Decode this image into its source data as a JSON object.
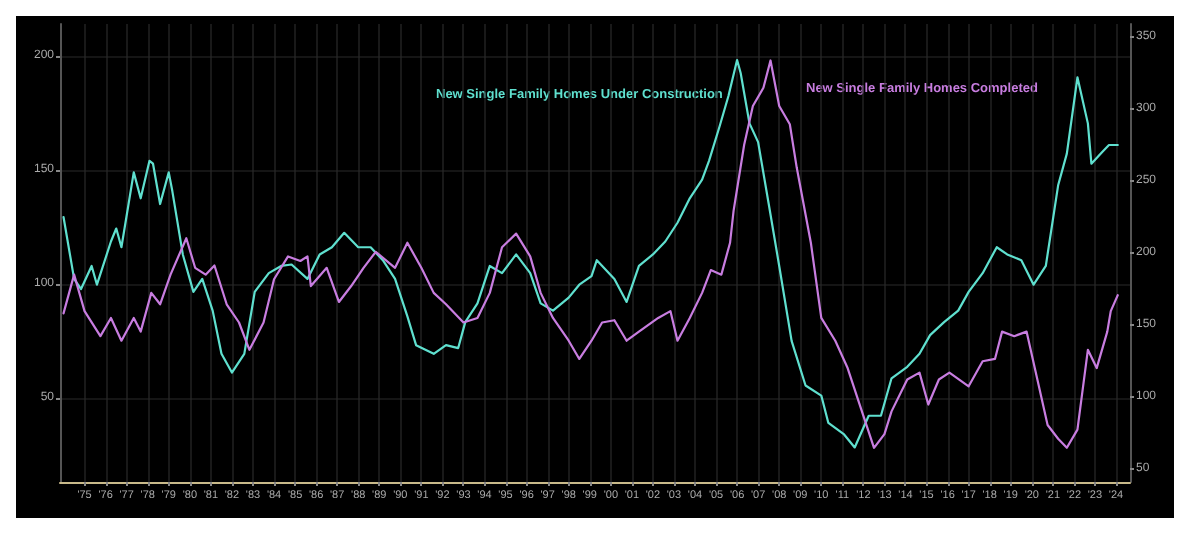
{
  "chart_data": {
    "type": "line",
    "xlim": [
      "1974-05",
      "2025-03"
    ],
    "xticks": [
      {
        "value": "1975-07",
        "label": "'75"
      },
      {
        "value": "1976-07",
        "label": "'76"
      },
      {
        "value": "1977-07",
        "label": "'77"
      },
      {
        "value": "1978-07",
        "label": "'78"
      },
      {
        "value": "1979-07",
        "label": "'79"
      },
      {
        "value": "1980-07",
        "label": "'80"
      },
      {
        "value": "1981-07",
        "label": "'81"
      },
      {
        "value": "1982-07",
        "label": "'82"
      },
      {
        "value": "1983-07",
        "label": "'83"
      },
      {
        "value": "1984-07",
        "label": "'84"
      },
      {
        "value": "1985-07",
        "label": "'85"
      },
      {
        "value": "1986-07",
        "label": "'86"
      },
      {
        "value": "1987-07",
        "label": "'87"
      },
      {
        "value": "1988-07",
        "label": "'88"
      },
      {
        "value": "1989-07",
        "label": "'89"
      },
      {
        "value": "1990-07",
        "label": "'90"
      },
      {
        "value": "1991-07",
        "label": "'91"
      },
      {
        "value": "1992-07",
        "label": "'92"
      },
      {
        "value": "1993-07",
        "label": "'93"
      },
      {
        "value": "1994-07",
        "label": "'94"
      },
      {
        "value": "1995-07",
        "label": "'95"
      },
      {
        "value": "1996-07",
        "label": "'96"
      },
      {
        "value": "1997-07",
        "label": "'97"
      },
      {
        "value": "1998-07",
        "label": "'98"
      },
      {
        "value": "1999-07",
        "label": "'99"
      },
      {
        "value": "2000-07",
        "label": "'00"
      },
      {
        "value": "2001-07",
        "label": "'01"
      },
      {
        "value": "2002-07",
        "label": "'02"
      },
      {
        "value": "2003-07",
        "label": "'03"
      },
      {
        "value": "2004-07",
        "label": "'04"
      },
      {
        "value": "2005-07",
        "label": "'05"
      },
      {
        "value": "2006-07",
        "label": "'06"
      },
      {
        "value": "2007-07",
        "label": "'07"
      },
      {
        "value": "2008-07",
        "label": "'08"
      },
      {
        "value": "2009-07",
        "label": "'09"
      },
      {
        "value": "2010-07",
        "label": "'10"
      },
      {
        "value": "2011-07",
        "label": "'11"
      },
      {
        "value": "2012-07",
        "label": "'12"
      },
      {
        "value": "2013-07",
        "label": "'13"
      },
      {
        "value": "2014-07",
        "label": "'14"
      },
      {
        "value": "2015-07",
        "label": "'15"
      },
      {
        "value": "2016-07",
        "label": "'16"
      },
      {
        "value": "2017-07",
        "label": "'17"
      },
      {
        "value": "2018-07",
        "label": "'18"
      },
      {
        "value": "2019-07",
        "label": "'19"
      },
      {
        "value": "2020-07",
        "label": "'20"
      },
      {
        "value": "2021-07",
        "label": "'21"
      },
      {
        "value": "2022-07",
        "label": "'22"
      },
      {
        "value": "2023-07",
        "label": "'23"
      },
      {
        "value": "2024-07",
        "label": "'24"
      }
    ],
    "ylim": [
      13,
      214
    ],
    "yticks": [
      50,
      100,
      150,
      200
    ],
    "y2lim": [
      41,
      359
    ],
    "y2ticks": [
      50,
      100,
      150,
      200,
      250,
      300,
      350
    ],
    "grid": true,
    "legend": false,
    "marker": "none",
    "line_style": "solid",
    "series": [
      {
        "name": "New Single Family Homes Under Construction",
        "color": "#5fe0cf",
        "axis": "y2",
        "x": [
          "1974-07",
          "1975-01",
          "1975-05",
          "1975-11",
          "1976-02",
          "1976-10",
          "1977-01",
          "1977-04",
          "1977-11",
          "1978-03",
          "1978-08",
          "1978-10",
          "1979-02",
          "1979-07",
          "1979-09",
          "1980-03",
          "1980-09",
          "1981-02",
          "1981-08",
          "1982-01",
          "1982-07",
          "1983-02",
          "1983-08",
          "1984-04",
          "1984-11",
          "1985-05",
          "1986-02",
          "1986-09",
          "1987-04",
          "1987-11",
          "1988-07",
          "1989-02",
          "1989-09",
          "1990-04",
          "1990-11",
          "1991-04",
          "1992-02",
          "1992-09",
          "1993-04",
          "1993-08",
          "1994-03",
          "1994-10",
          "1995-05",
          "1996-01",
          "1996-09",
          "1997-03",
          "1997-10",
          "1998-07",
          "1999-01",
          "1999-08",
          "1999-11",
          "2000-09",
          "2001-04",
          "2001-11",
          "2002-07",
          "2003-02",
          "2003-09",
          "2004-04",
          "2004-11",
          "2005-03",
          "2005-09",
          "2006-02",
          "2006-07",
          "2006-09",
          "2007-02",
          "2007-07",
          "2008-01",
          "2008-07",
          "2009-02",
          "2009-10",
          "2010-07",
          "2010-11",
          "2011-08",
          "2012-02",
          "2012-10",
          "2013-05",
          "2013-11",
          "2014-08",
          "2015-03",
          "2015-09",
          "2016-05",
          "2017-01",
          "2017-07",
          "2018-03",
          "2018-11",
          "2019-05",
          "2020-01",
          "2020-08",
          "2021-03",
          "2021-10",
          "2022-03",
          "2022-09",
          "2023-03",
          "2023-05",
          "2023-11",
          "2024-03",
          "2024-08"
        ],
        "values": [
          225,
          182,
          175,
          191,
          178,
          208,
          217,
          204,
          256,
          238,
          264,
          262,
          234,
          256,
          243,
          199,
          173,
          182,
          160,
          130,
          117,
          130,
          173,
          186,
          191,
          192,
          182,
          199,
          204,
          214,
          204,
          204,
          195,
          182,
          156,
          136,
          130,
          136,
          134,
          152,
          165,
          191,
          186,
          199,
          186,
          165,
          160,
          169,
          178,
          184,
          195,
          182,
          166,
          191,
          199,
          208,
          221,
          238,
          251,
          264,
          288,
          309,
          334,
          325,
          290,
          277,
          234,
          191,
          139,
          108,
          101,
          82,
          74,
          65,
          87,
          87,
          113,
          121,
          130,
          143,
          152,
          160,
          173,
          186,
          204,
          199,
          195,
          178,
          191,
          247,
          269,
          322,
          290,
          262,
          270,
          275,
          275
        ]
      },
      {
        "name": "New Single Family Homes Completed",
        "color": "#c87de0",
        "x": [
          "1974-07",
          "1975-01",
          "1975-07",
          "1976-04",
          "1976-10",
          "1977-04",
          "1977-11",
          "1978-03",
          "1978-09",
          "1979-02",
          "1979-08",
          "1980-05",
          "1980-10",
          "1981-04",
          "1981-09",
          "1982-04",
          "1982-11",
          "1983-05",
          "1984-01",
          "1984-07",
          "1985-03",
          "1985-10",
          "1986-02",
          "1986-04",
          "1987-01",
          "1987-08",
          "1988-03",
          "1988-10",
          "1989-05",
          "1990-04",
          "1990-11",
          "1991-07",
          "1992-02",
          "1992-09",
          "1993-07",
          "1994-03",
          "1994-10",
          "1995-05",
          "1996-01",
          "1996-09",
          "1997-03",
          "1997-10",
          "1998-07",
          "1999-01",
          "1999-08",
          "2000-02",
          "2000-09",
          "2001-04",
          "2001-11",
          "2002-10",
          "2003-05",
          "2003-09",
          "2004-04",
          "2004-11",
          "2005-04",
          "2005-10",
          "2006-03",
          "2006-05",
          "2006-11",
          "2007-04",
          "2007-10",
          "2008-02",
          "2008-07",
          "2009-01",
          "2009-05",
          "2010-01",
          "2010-07",
          "2011-03",
          "2011-10",
          "2012-07",
          "2013-01",
          "2013-07",
          "2013-11",
          "2014-08",
          "2015-03",
          "2015-08",
          "2016-02",
          "2016-08",
          "2017-07",
          "2018-03",
          "2018-10",
          "2019-02",
          "2019-09",
          "2020-04",
          "2020-11",
          "2021-04",
          "2021-10",
          "2022-03",
          "2022-09",
          "2023-03",
          "2023-08",
          "2024-02",
          "2024-04",
          "2024-08"
        ],
        "values": [
          87,
          104,
          88,
          77,
          85,
          75,
          85,
          79,
          96,
          91,
          104,
          120,
          107,
          104,
          108,
          91,
          83,
          71,
          83,
          102,
          112,
          110,
          112,
          99,
          107,
          92,
          99,
          107,
          114,
          107,
          118,
          107,
          96,
          91,
          83,
          85,
          96,
          116,
          122,
          112,
          96,
          85,
          75,
          67,
          75,
          83,
          84,
          75,
          79,
          85,
          88,
          75,
          85,
          96,
          106,
          104,
          118,
          132,
          161,
          178,
          186,
          198,
          178,
          170,
          151,
          118,
          85,
          75,
          63,
          42,
          28,
          34,
          44,
          58,
          61,
          47,
          58,
          61,
          55,
          66,
          67,
          79,
          77,
          79,
          55,
          38,
          32,
          28,
          36,
          71,
          63,
          79,
          88,
          95
        ]
      }
    ]
  }
}
